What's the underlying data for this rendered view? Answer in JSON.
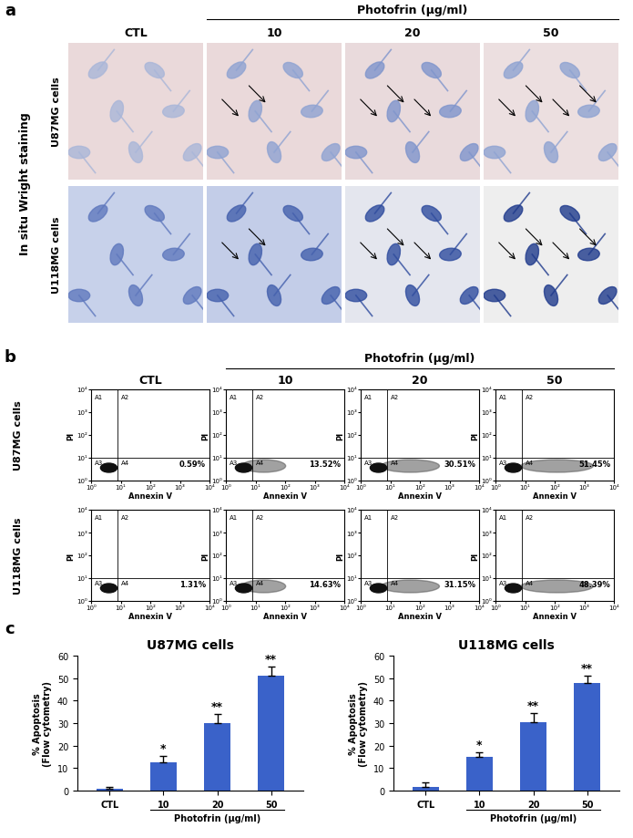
{
  "panel_labels": [
    "a",
    "b",
    "c"
  ],
  "panel_a": {
    "title": "In situ Wright staining",
    "header": "Photofrin (μg/ml)",
    "columns": [
      "CTL",
      "10",
      "20",
      "50"
    ],
    "rows": [
      "U87MG cells",
      "U118MG cells"
    ]
  },
  "panel_b": {
    "header": "Photofrin (μg/ml)",
    "columns": [
      "CTL",
      "10",
      "20",
      "50"
    ],
    "rows": [
      "U87MG cells",
      "U118MG cells"
    ],
    "xlabel": "Annexin V",
    "ylabel": "PI",
    "xlim": [
      1,
      10000
    ],
    "ylim": [
      1,
      10000
    ],
    "log": true,
    "xticks": [
      {
        "value": 1,
        "label": "10⁰"
      },
      {
        "value": 10,
        "label": "10¹"
      },
      {
        "value": 100,
        "label": "10²"
      },
      {
        "value": 1000,
        "label": "10³"
      },
      {
        "value": 10000,
        "label": "10⁴"
      }
    ],
    "yticks": [
      {
        "value": 1,
        "label": "10⁰"
      },
      {
        "value": 10,
        "label": "10¹"
      },
      {
        "value": 100,
        "label": "10²"
      },
      {
        "value": 1000,
        "label": "10³"
      },
      {
        "value": 10000,
        "label": "10⁴"
      }
    ],
    "quadrants": [
      "A1",
      "A2",
      "A3",
      "A4"
    ],
    "gate": {
      "x": 8,
      "y": 10
    },
    "values": [
      [
        0.59,
        13.52,
        30.51,
        51.45
      ],
      [
        1.31,
        14.63,
        31.15,
        48.39
      ]
    ],
    "value_labels": [
      [
        "0.59%",
        "13.52%",
        "30.51%",
        "51.45%"
      ],
      [
        "1.31%",
        "14.63%",
        "31.15%",
        "48.39%"
      ]
    ]
  },
  "chart_data": [
    {
      "type": "bar",
      "title": "U87MG cells",
      "categories": [
        "CTL",
        "10",
        "20",
        "50"
      ],
      "values": [
        0.8,
        12.5,
        30,
        51
      ],
      "errors": [
        0.7,
        3,
        4,
        4
      ],
      "annotations": [
        null,
        "*",
        "**",
        "**"
      ],
      "color": "#3a62c9",
      "xlabel": "Photofrin (μg/ml)",
      "ylabel": "% Apoptosis\n(Flow cytometry)",
      "ylim": [
        0,
        60
      ],
      "yticks": [
        0,
        10,
        20,
        30,
        40,
        50,
        60
      ]
    },
    {
      "type": "bar",
      "title": "U118MG cells",
      "categories": [
        "CTL",
        "10",
        "20",
        "50"
      ],
      "values": [
        1.5,
        15,
        30.5,
        48
      ],
      "errors": [
        2,
        2,
        4,
        3
      ],
      "annotations": [
        null,
        "*",
        "**",
        "**"
      ],
      "color": "#3a62c9",
      "xlabel": "Photofrin (μg/ml)",
      "ylabel": "% Apoptosis\n(Flow cytometry)",
      "ylim": [
        0,
        60
      ],
      "yticks": [
        0,
        10,
        20,
        30,
        40,
        50,
        60
      ]
    }
  ]
}
